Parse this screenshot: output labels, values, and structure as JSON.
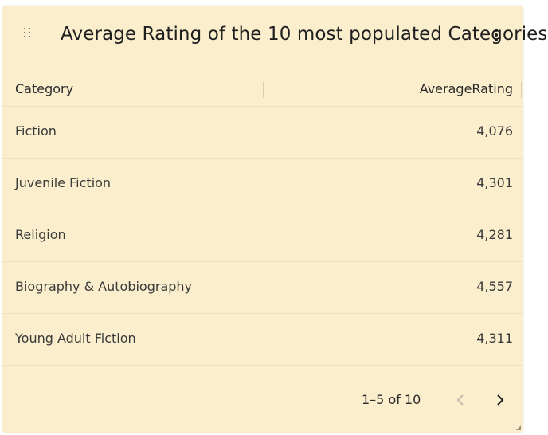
{
  "widget": {
    "title": "Average Rating of the 10 most populated Categories",
    "menu_icon": "more-vert-icon",
    "drag_icon": "drag-handle-icon"
  },
  "table": {
    "columns": [
      "Category",
      "AverageRating"
    ],
    "rows": [
      {
        "category": "Fiction",
        "average_rating": "4,076"
      },
      {
        "category": "Juvenile Fiction",
        "average_rating": "4,301"
      },
      {
        "category": "Religion",
        "average_rating": "4,281"
      },
      {
        "category": "Biography & Autobiography",
        "average_rating": "4,557"
      },
      {
        "category": "Young Adult Fiction",
        "average_rating": "4,311"
      }
    ]
  },
  "pagination": {
    "info": "1–5 of 10",
    "prev_icon": "chevron-left-icon",
    "next_icon": "chevron-right-icon",
    "prev_enabled": false,
    "next_enabled": true
  },
  "colors": {
    "card_background": "#faeecd",
    "text": "#2b2b2b",
    "disabled": "#b8b3a3"
  }
}
